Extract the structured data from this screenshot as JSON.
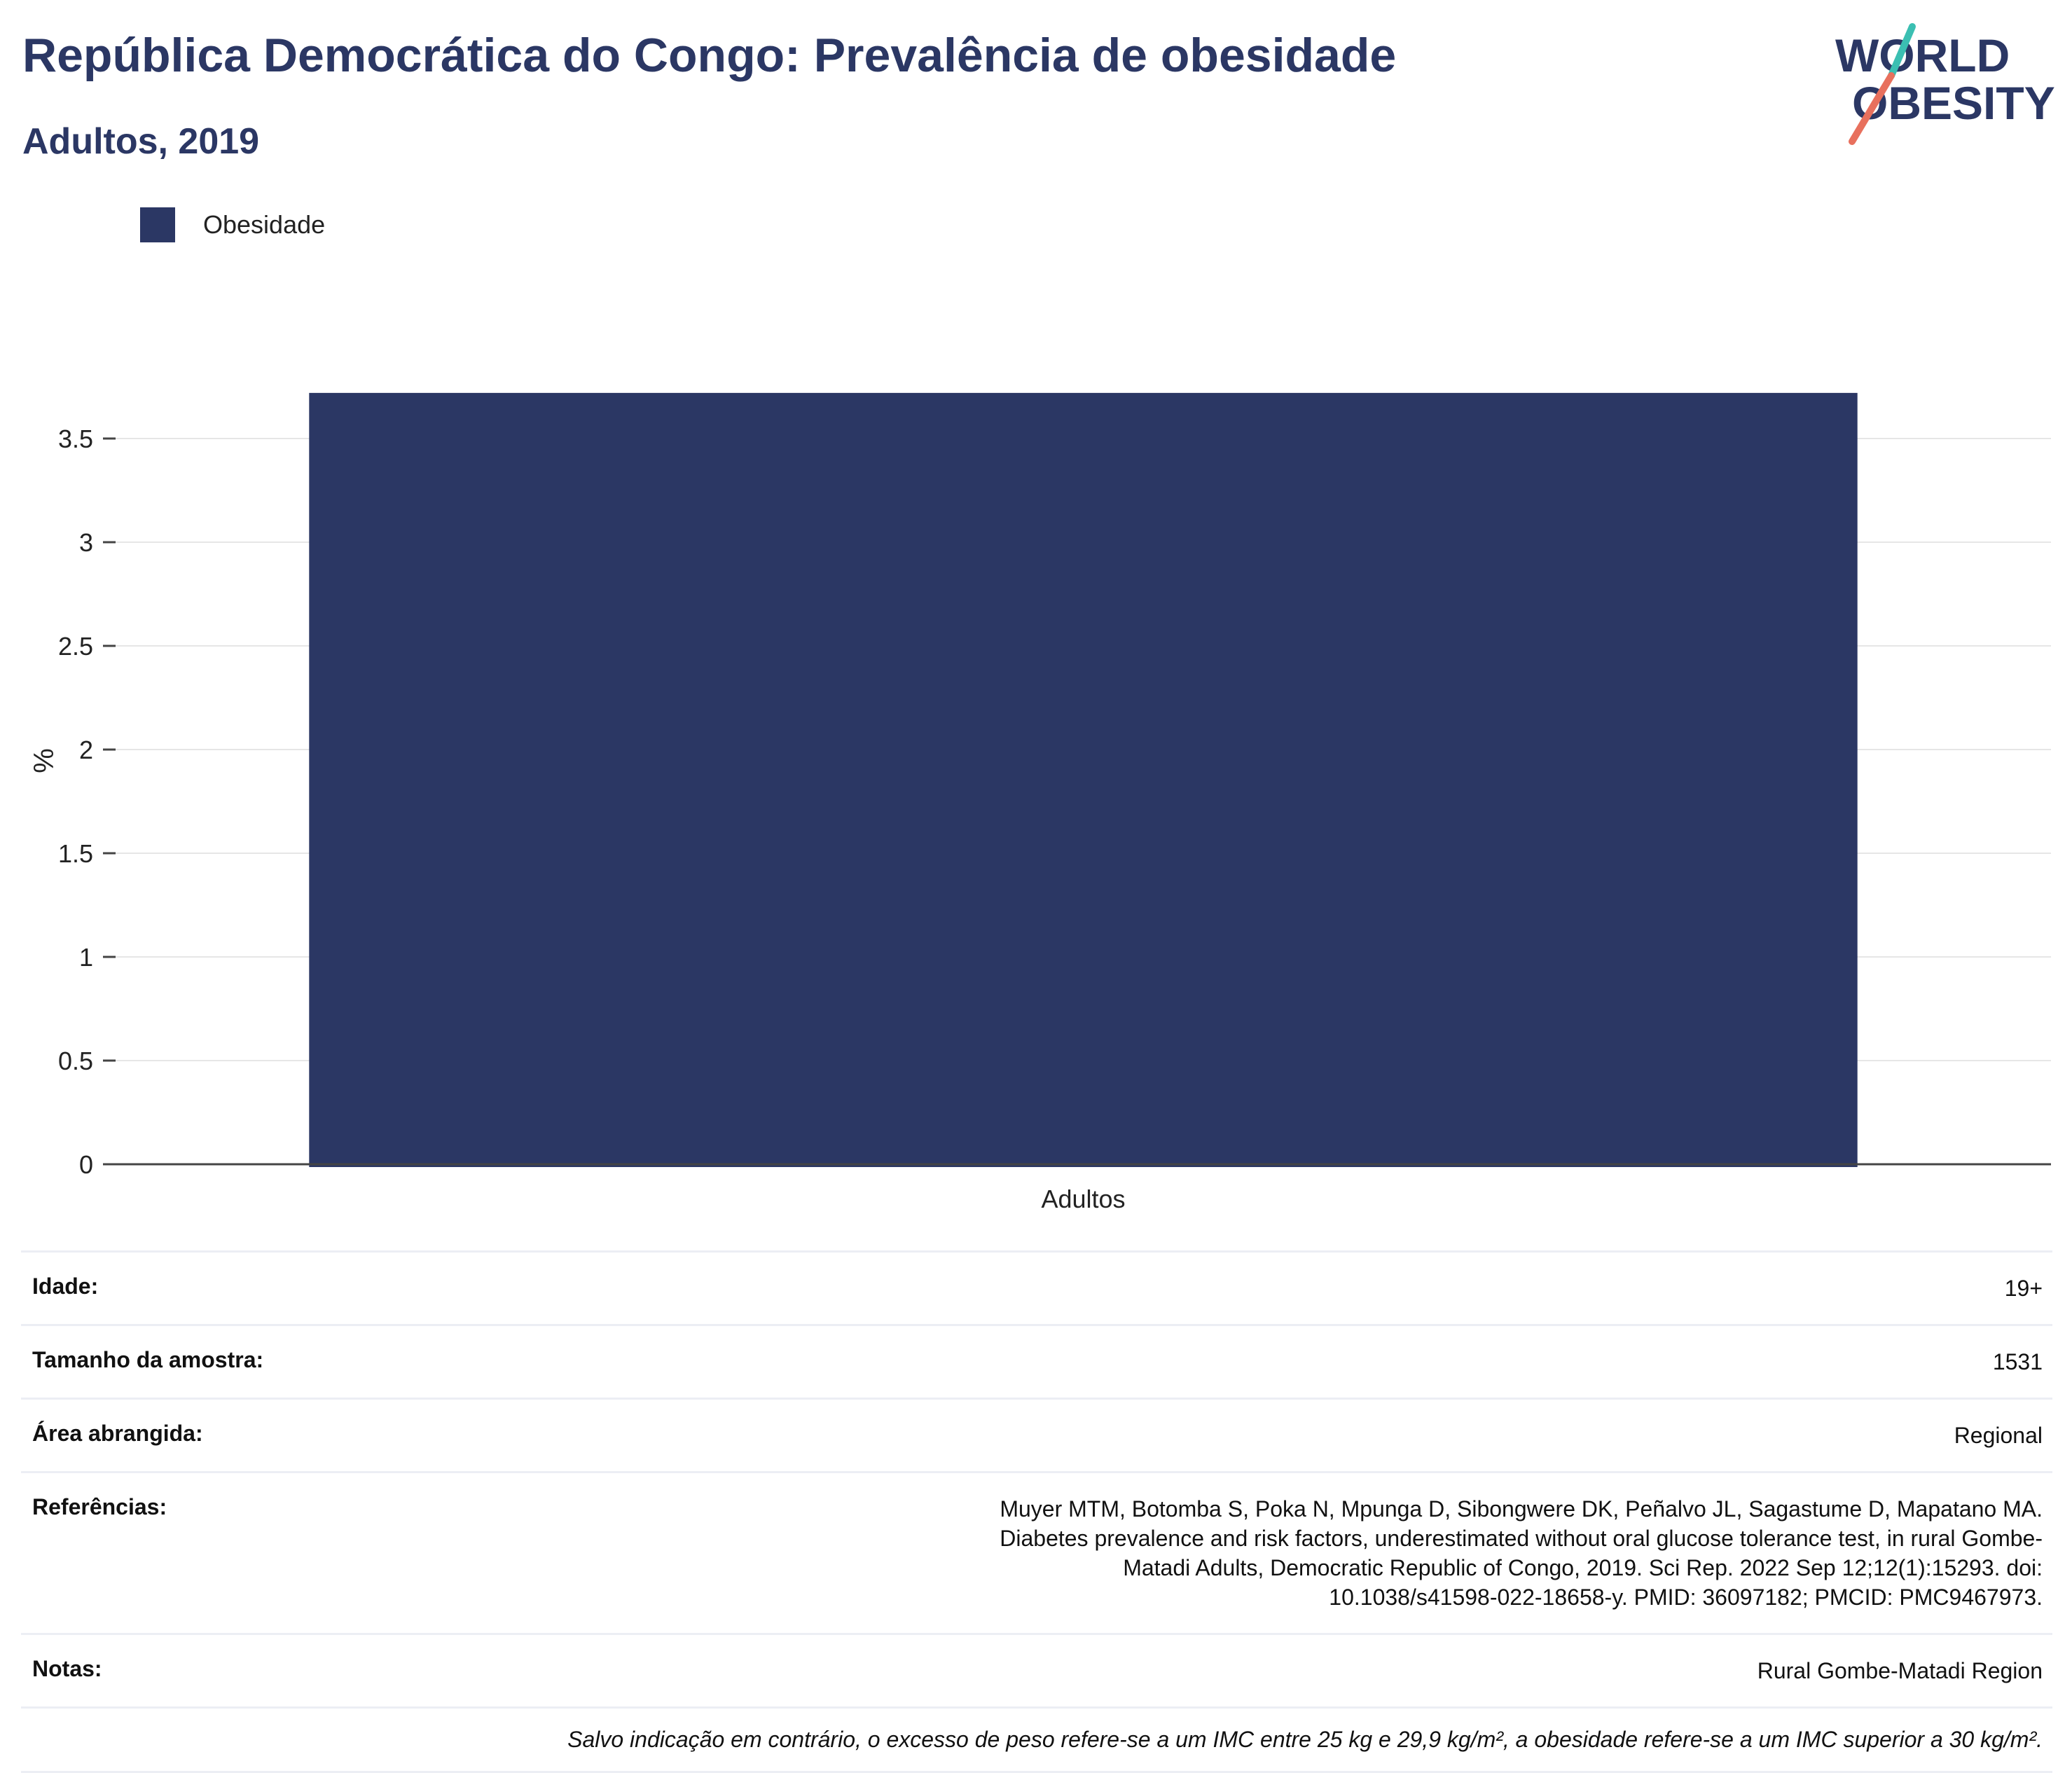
{
  "header": {
    "title": "República Democrática do Congo: Prevalência de obesidade",
    "subtitle": "Adultos, 2019"
  },
  "logo": {
    "line1": "WORLD",
    "line2": "OBESITY",
    "colors": {
      "text": "#2b3764",
      "slash_top": "#3bbfb2",
      "slash_bottom": "#e8705d"
    }
  },
  "chart_data": {
    "type": "bar",
    "categories": [
      "Adultos"
    ],
    "series": [
      {
        "name": "Obesidade",
        "values": [
          3.72
        ],
        "color": "#2b3764"
      }
    ],
    "ylabel": "%",
    "xlabel": "",
    "ylim": [
      0,
      3.75
    ],
    "yticks": [
      0,
      0.5,
      1,
      1.5,
      2,
      2.5,
      3,
      3.5
    ],
    "ytick_labels": [
      "0",
      "0.5",
      "1",
      "1.5",
      "2",
      "2.5",
      "3",
      "3.5"
    ],
    "grid": true,
    "legend_position": "top-left"
  },
  "info": {
    "age_label": "Idade:",
    "age_value": "19+",
    "sample_label": "Tamanho da amostra:",
    "sample_value": "1531",
    "area_label": "Área abrangida:",
    "area_value": "Regional",
    "refs_label": "Referências:",
    "refs_value": "Muyer MTM, Botomba S, Poka N, Mpunga D, Sibongwere DK, Peñalvo JL, Sagastume D, Mapatano MA. Diabetes prevalence and risk factors, underestimated without oral glucose tolerance test, in rural Gombe-Matadi Adults, Democratic Republic of Congo, 2019. Sci Rep. 2022 Sep 12;12(1):15293. doi: 10.1038/s41598-022-18658-y. PMID: 36097182; PMCID: PMC9467973.",
    "notes_label": "Notas:",
    "notes_value": "Rural Gombe-Matadi Region",
    "footnote": "Salvo indicação em contrário, o excesso de peso refere-se a um IMC entre 25 kg e 29,9 kg/m², a obesidade refere-se a um IMC superior a 30 kg/m²."
  }
}
